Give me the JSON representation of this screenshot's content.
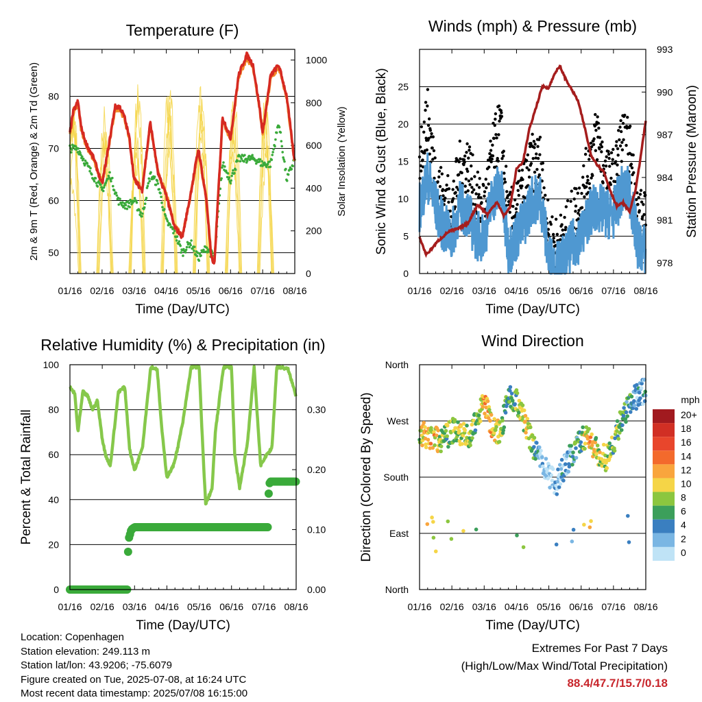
{
  "chart_data": [
    {
      "id": "temp",
      "type": "line",
      "title": "Temperature (F)",
      "xlabel": "Time (Day/UTC)",
      "ylabel": "2m & 9m T (Red, Orange) & 2m Td (Green)",
      "ylabel_right": "Solar Insolation (Yellow)",
      "x_ticks": [
        "01/16",
        "02/16",
        "03/16",
        "04/16",
        "05/16",
        "06/16",
        "07/16",
        "08/16"
      ],
      "ylim": [
        46,
        89
      ],
      "y_ticks": [
        50,
        60,
        70,
        80
      ],
      "y2lim": [
        0,
        1050
      ],
      "y2_ticks": [
        0,
        200,
        400,
        600,
        800,
        1000
      ],
      "series": [
        {
          "name": "2m T",
          "color": "#d62a22",
          "x": [
            0,
            0.1,
            0.25,
            0.35,
            0.5,
            0.75,
            1,
            1.25,
            1.4,
            1.55,
            1.7,
            1.85,
            2,
            2.25,
            2.5,
            2.75,
            3,
            3.25,
            3.5,
            3.75,
            4,
            4.25,
            4.4,
            4.5,
            4.75,
            5,
            5.25,
            5.5,
            5.7,
            5.9,
            6,
            6.25,
            6.5,
            6.75,
            7
          ],
          "values": [
            73,
            77,
            79,
            74,
            71,
            68,
            63,
            72,
            78,
            78,
            76,
            72,
            64,
            62,
            75,
            65,
            61,
            55,
            53,
            61,
            70,
            60,
            49,
            48,
            76,
            72,
            84,
            88,
            86,
            78,
            73,
            84,
            86,
            80,
            67
          ]
        },
        {
          "name": "9m T",
          "color": "#f28d2a",
          "x": [
            0,
            0.1,
            0.25,
            0.35,
            0.5,
            0.75,
            1,
            1.25,
            1.4,
            1.55,
            1.7,
            1.85,
            2,
            2.25,
            2.5,
            2.75,
            3,
            3.25,
            3.5,
            3.75,
            4,
            4.25,
            4.4,
            4.5,
            4.75,
            5,
            5.25,
            5.5,
            5.7,
            5.9,
            6,
            6.25,
            6.5,
            6.75,
            7
          ],
          "values": [
            72.5,
            76.5,
            78.5,
            73.6,
            70.7,
            67.6,
            63.2,
            71.6,
            77.5,
            77.6,
            75.7,
            71.8,
            64.2,
            62.3,
            74.6,
            65.1,
            61.2,
            55.3,
            53.4,
            60.8,
            69.6,
            60.2,
            49.4,
            48.6,
            75.5,
            71.8,
            83.5,
            87.3,
            85.6,
            77.8,
            72.7,
            83.4,
            85.5,
            79.7,
            66.7
          ]
        },
        {
          "name": "2m Td",
          "color": "#3aaa3a",
          "x": [
            0,
            0.25,
            0.5,
            1,
            1.25,
            1.5,
            1.75,
            2,
            2.25,
            2.5,
            2.75,
            3,
            3.25,
            3.5,
            3.75,
            4,
            4.25,
            4.5,
            4.75,
            5,
            5.25,
            5.5,
            5.75,
            6,
            6.25,
            6.5,
            6.75,
            7
          ],
          "values": [
            70,
            70,
            67,
            62,
            65,
            60,
            59,
            60,
            57,
            65,
            63,
            56,
            54,
            50,
            52,
            49,
            51,
            49,
            67,
            64,
            68,
            68,
            68,
            67,
            67,
            75,
            64,
            68
          ]
        },
        {
          "name": "Solar Insolation",
          "color": "#f5d547",
          "axis": "right",
          "note": "diurnal peaks",
          "peaks": [
            850,
            850,
            950,
            980,
            1000,
            960,
            980
          ]
        }
      ]
    },
    {
      "id": "wind",
      "type": "scatter",
      "title": "Winds (mph) & Pressure (mb)",
      "xlabel": "Time (Day/UTC)",
      "ylabel": "Sonic Wind & Gust (Blue, Black)",
      "ylabel_right": "Station Pressure (Maroon)",
      "x_ticks": [
        "01/16",
        "02/16",
        "03/16",
        "04/16",
        "05/16",
        "06/16",
        "07/16",
        "08/16"
      ],
      "ylim": [
        0,
        30
      ],
      "y_ticks": [
        0,
        5,
        10,
        15,
        20,
        25
      ],
      "y2lim": [
        977.25,
        993
      ],
      "y2_ticks": [
        978,
        981,
        984,
        987,
        990,
        993
      ],
      "series": [
        {
          "name": "Sonic Wind",
          "color": "#4f98d1",
          "x": [
            0,
            0.25,
            0.5,
            0.75,
            1,
            1.25,
            1.5,
            1.75,
            2,
            2.25,
            2.5,
            2.75,
            3,
            3.25,
            3.5,
            3.75,
            4,
            4.25,
            4.5,
            4.75,
            5,
            5.25,
            5.5,
            5.75,
            6,
            6.25,
            6.5,
            6.75,
            7
          ],
          "values": [
            9,
            13,
            9,
            6,
            5,
            9,
            8,
            5,
            5,
            10,
            12,
            3,
            5,
            7,
            10,
            10,
            2,
            1,
            2,
            4,
            5,
            8,
            9,
            8,
            8,
            11,
            11,
            4,
            3
          ]
        },
        {
          "name": "Gust",
          "color": "#000000",
          "x": [
            0,
            0.25,
            0.5,
            0.75,
            1,
            1.25,
            1.5,
            1.75,
            2,
            2.25,
            2.5,
            2.75,
            3,
            3.25,
            3.5,
            3.75,
            4,
            4.25,
            4.5,
            4.75,
            5,
            5.25,
            5.5,
            5.75,
            6,
            6.25,
            6.5,
            6.75,
            7
          ],
          "values": [
            15,
            20,
            12,
            9,
            8,
            13,
            14,
            9,
            8,
            15,
            19,
            6,
            8,
            11,
            14,
            14,
            4,
            3,
            4,
            7,
            9,
            14,
            18,
            12,
            12,
            17,
            16,
            7,
            6
          ]
        },
        {
          "name": "Station Pressure",
          "color": "#a51d1d",
          "axis": "right",
          "x": [
            0,
            0.1,
            0.2,
            0.3,
            0.6,
            0.9,
            1.2,
            1.5,
            1.8,
            2.1,
            2.4,
            2.6,
            2.8,
            3,
            3.2,
            3.4,
            3.6,
            3.8,
            4,
            4.2,
            4.35,
            4.5,
            4.7,
            4.9,
            5.1,
            5.3,
            5.5,
            5.7,
            5.9,
            6.1,
            6.3,
            6.5,
            6.7,
            6.9,
            7
          ],
          "values": [
            979.8,
            979.2,
            978.6,
            978.8,
            979.6,
            980.2,
            980.4,
            980.8,
            982.1,
            981.4,
            982.3,
            981.3,
            981.9,
            984.6,
            985.1,
            987.4,
            988.9,
            990.4,
            990.3,
            991.4,
            991.8,
            991.0,
            990.2,
            989.4,
            987.6,
            985.6,
            984.9,
            984.4,
            983.1,
            982.0,
            982.2,
            981.6,
            983.3,
            986.4,
            988.0
          ]
        }
      ]
    },
    {
      "id": "rh",
      "type": "line",
      "title": "Relative Humidity (%) & Precipitation (in)",
      "xlabel": "Time (Day/UTC)",
      "ylabel": "Percent & Total Rainfall",
      "x_ticks": [
        "01/16",
        "02/16",
        "03/16",
        "04/16",
        "05/16",
        "06/16",
        "07/16",
        "08/16"
      ],
      "ylim": [
        0,
        100
      ],
      "y_ticks": [
        0,
        20,
        40,
        60,
        80,
        100
      ],
      "y2lim": [
        0,
        0.375
      ],
      "y2_ticks": [
        "0.00",
        "0.10",
        "0.20",
        "0.30"
      ],
      "series": [
        {
          "name": "Relative Humidity",
          "color": "#86c84b",
          "x": [
            0,
            0.15,
            0.25,
            0.4,
            0.55,
            0.7,
            0.85,
            1,
            1.1,
            1.25,
            1.5,
            1.7,
            1.85,
            2,
            2.1,
            2.25,
            2.5,
            2.7,
            2.85,
            3,
            3.2,
            3.35,
            3.5,
            3.75,
            4,
            4.1,
            4.2,
            4.4,
            4.5,
            4.75,
            5,
            5.1,
            5.25,
            5.5,
            5.7,
            5.9,
            6,
            6.25,
            6.4,
            6.5,
            6.75,
            7
          ],
          "values": [
            90,
            87,
            70,
            88,
            86,
            80,
            84,
            67,
            60,
            55,
            88,
            90,
            62,
            53,
            57,
            64,
            99,
            98,
            70,
            50,
            55,
            64,
            75,
            99,
            99,
            66,
            38,
            45,
            70,
            99,
            99,
            60,
            45,
            66,
            99,
            55,
            58,
            63,
            99,
            99,
            98,
            86
          ]
        },
        {
          "name": "Total Precipitation",
          "color": "#3aaa3a",
          "axis": "right",
          "x": [
            0,
            0.5,
            1,
            1.5,
            1.78,
            1.79,
            1.8,
            1.82,
            1.85,
            1.9,
            2,
            2.5,
            3,
            4,
            5,
            6.12,
            6.14,
            6.16,
            6.2,
            6.5,
            7
          ],
          "values": [
            0,
            0,
            0,
            0,
            0,
            0.042,
            0.063,
            0.085,
            0.09,
            0.1,
            0.104,
            0.104,
            0.104,
            0.104,
            0.104,
            0.104,
            0.145,
            0.175,
            0.18,
            0.18,
            0.18
          ]
        }
      ]
    },
    {
      "id": "winddir",
      "type": "scatter",
      "title": "Wind Direction",
      "xlabel": "Time (Day/UTC)",
      "ylabel": "Direction (Colored By Speed)",
      "x_ticks": [
        "01/16",
        "02/16",
        "03/16",
        "04/16",
        "05/16",
        "06/16",
        "07/16",
        "08/16"
      ],
      "y_ticks": [
        "North",
        "East",
        "South",
        "West",
        "North"
      ],
      "ylim": [
        0,
        360
      ],
      "series": [
        {
          "name": "Wind Direction",
          "x": [
            0,
            0.25,
            0.5,
            0.75,
            1,
            1.25,
            1.5,
            1.75,
            2,
            2.25,
            2.5,
            2.75,
            3,
            3.25,
            3.5,
            3.75,
            4,
            4.25,
            4.5,
            4.75,
            5,
            5.25,
            5.5,
            5.75,
            6,
            6.25,
            6.5,
            6.75,
            7
          ],
          "values": [
            250,
            245,
            240,
            240,
            255,
            250,
            245,
            265,
            300,
            260,
            250,
            310,
            300,
            270,
            230,
            210,
            180,
            170,
            200,
            220,
            240,
            240,
            220,
            210,
            230,
            275,
            300,
            310,
            320
          ],
          "speed": [
            10,
            12,
            11,
            8,
            9,
            10,
            9,
            8,
            12,
            13,
            9,
            6,
            8,
            10,
            9,
            2,
            1,
            3,
            4,
            5,
            8,
            12,
            10,
            9,
            8,
            8,
            6,
            4,
            4
          ]
        }
      ],
      "colorbar": {
        "title": "mph",
        "levels": [
          {
            "label": "20+",
            "color": "#a11a1f"
          },
          {
            "label": "18",
            "color": "#d12f24"
          },
          {
            "label": "16",
            "color": "#e8462c"
          },
          {
            "label": "14",
            "color": "#f36a2c"
          },
          {
            "label": "12",
            "color": "#f9a53d"
          },
          {
            "label": "10",
            "color": "#f5d547"
          },
          {
            "label": "8",
            "color": "#8cc63f"
          },
          {
            "label": "6",
            "color": "#3c9f5b"
          },
          {
            "label": "4",
            "color": "#3a7fc0"
          },
          {
            "label": "2",
            "color": "#7ab6e3"
          },
          {
            "label": "0",
            "color": "#bfe3f6"
          }
        ]
      }
    }
  ],
  "info": {
    "location": "Location: Copenhagen",
    "elevation": "Station elevation: 249.113 m",
    "latlon": "Station lat/lon: 43.9206; -75.6079",
    "created": "Figure created on Tue, 2025-07-08, at 16:24 UTC",
    "timestamp": "Most recent data timestamp: 2025/07/08 16:15:00"
  },
  "extremes": {
    "title": "Extremes For Past 7 Days",
    "subtitle": "(High/Low/Max Wind/Total Precipitation)",
    "values": "88.4/47.7/15.7/0.18"
  }
}
